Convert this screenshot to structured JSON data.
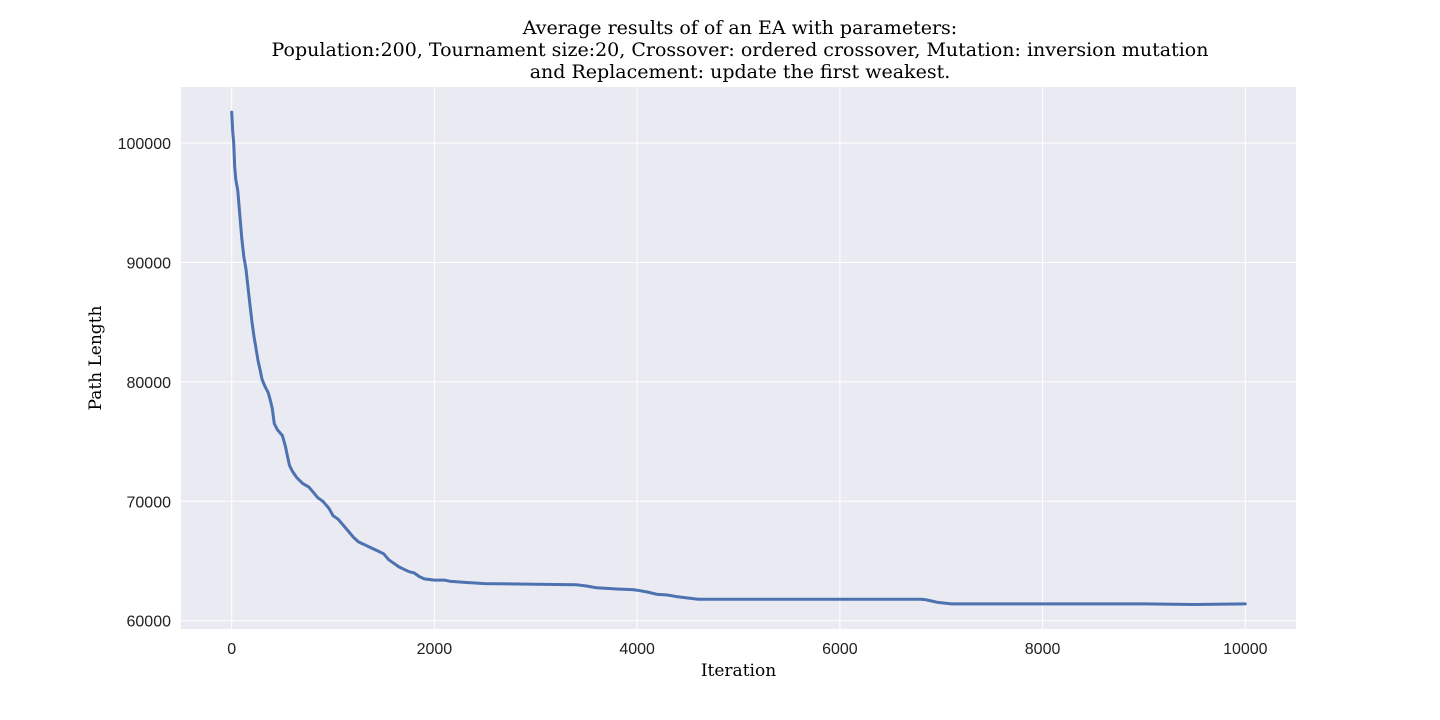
{
  "chart_data": {
    "type": "line",
    "title_lines": [
      "Average results of of an EA with parameters:",
      "Population:200, Tournament size:20, Crossover: ordered crossover, Mutation: inversion mutation",
      "and Replacement: update the first weakest."
    ],
    "xlabel": "Iteration",
    "ylabel": "Path Length",
    "xlim": [
      -500,
      10500
    ],
    "ylim": [
      59300,
      104700
    ],
    "x_ticks": [
      0,
      2000,
      4000,
      6000,
      8000,
      10000
    ],
    "y_ticks": [
      60000,
      70000,
      80000,
      90000,
      100000
    ],
    "grid": true,
    "background": "#eaeaf2",
    "grid_color": "#ffffff",
    "series": [
      {
        "color": "#4c72b0",
        "points": [
          [
            0,
            102600
          ],
          [
            10,
            101000
          ],
          [
            20,
            100000
          ],
          [
            30,
            98000
          ],
          [
            40,
            97000
          ],
          [
            60,
            96000
          ],
          [
            80,
            94000
          ],
          [
            100,
            92000
          ],
          [
            120,
            90500
          ],
          [
            140,
            89500
          ],
          [
            160,
            88000
          ],
          [
            180,
            86500
          ],
          [
            200,
            85000
          ],
          [
            220,
            83800
          ],
          [
            240,
            82800
          ],
          [
            260,
            81800
          ],
          [
            280,
            81000
          ],
          [
            300,
            80200
          ],
          [
            330,
            79600
          ],
          [
            360,
            79100
          ],
          [
            380,
            78500
          ],
          [
            400,
            77800
          ],
          [
            420,
            76500
          ],
          [
            450,
            76000
          ],
          [
            500,
            75500
          ],
          [
            530,
            74600
          ],
          [
            550,
            73800
          ],
          [
            570,
            73000
          ],
          [
            600,
            72500
          ],
          [
            640,
            72000
          ],
          [
            700,
            71500
          ],
          [
            760,
            71200
          ],
          [
            800,
            70800
          ],
          [
            850,
            70300
          ],
          [
            900,
            70000
          ],
          [
            960,
            69400
          ],
          [
            1000,
            68800
          ],
          [
            1050,
            68500
          ],
          [
            1100,
            68000
          ],
          [
            1150,
            67500
          ],
          [
            1200,
            67000
          ],
          [
            1250,
            66600
          ],
          [
            1300,
            66400
          ],
          [
            1350,
            66200
          ],
          [
            1400,
            66000
          ],
          [
            1450,
            65800
          ],
          [
            1500,
            65600
          ],
          [
            1550,
            65100
          ],
          [
            1600,
            64800
          ],
          [
            1650,
            64500
          ],
          [
            1700,
            64300
          ],
          [
            1750,
            64100
          ],
          [
            1800,
            64000
          ],
          [
            1850,
            63700
          ],
          [
            1900,
            63500
          ],
          [
            2000,
            63400
          ],
          [
            2100,
            63400
          ],
          [
            2150,
            63300
          ],
          [
            2300,
            63200
          ],
          [
            2500,
            63100
          ],
          [
            3000,
            63050
          ],
          [
            3400,
            63000
          ],
          [
            3500,
            62900
          ],
          [
            3600,
            62750
          ],
          [
            3700,
            62700
          ],
          [
            3800,
            62650
          ],
          [
            3950,
            62600
          ],
          [
            4000,
            62550
          ],
          [
            4100,
            62400
          ],
          [
            4200,
            62200
          ],
          [
            4300,
            62150
          ],
          [
            4400,
            62000
          ],
          [
            4500,
            61900
          ],
          [
            4600,
            61800
          ],
          [
            5000,
            61800
          ],
          [
            6000,
            61800
          ],
          [
            6800,
            61800
          ],
          [
            6850,
            61750
          ],
          [
            6900,
            61650
          ],
          [
            6950,
            61550
          ],
          [
            7000,
            61500
          ],
          [
            7100,
            61400
          ],
          [
            7500,
            61400
          ],
          [
            8000,
            61400
          ],
          [
            9000,
            61400
          ],
          [
            9500,
            61350
          ],
          [
            10000,
            61400
          ]
        ]
      }
    ]
  }
}
